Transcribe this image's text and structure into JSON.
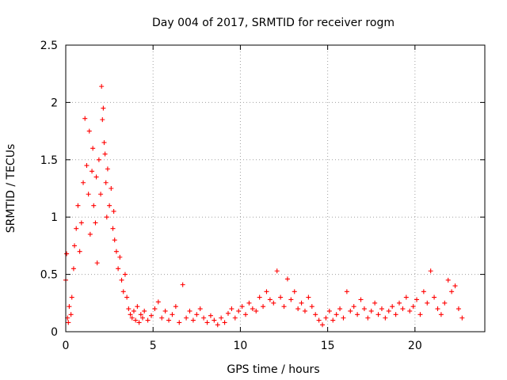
{
  "chart_data": {
    "type": "scatter",
    "title": "Day 004 of 2017, SRMTID for receiver rogm",
    "xlabel": "GPS time / hours",
    "ylabel": "SRMTID / TECUs",
    "xlim": [
      0,
      24
    ],
    "ylim": [
      0,
      2.5
    ],
    "xticks": [
      0,
      5,
      10,
      15,
      20
    ],
    "xtick_labels": [
      "0",
      "5",
      "10",
      "15",
      "20"
    ],
    "yticks": [
      0,
      0.5,
      1,
      1.5,
      2,
      2.5
    ],
    "ytick_labels": [
      "0",
      "0.5",
      "1",
      "1.5",
      "2",
      "2.5"
    ],
    "grid": true,
    "marker": "+",
    "color": "#ff0000",
    "series": [
      {
        "name": "SRMTID",
        "x": [
          0.0,
          0.05,
          0.1,
          0.15,
          0.2,
          0.3,
          0.35,
          0.45,
          0.5,
          0.6,
          0.7,
          0.8,
          0.9,
          1.0,
          1.1,
          1.2,
          1.3,
          1.35,
          1.4,
          1.5,
          1.55,
          1.6,
          1.7,
          1.75,
          1.8,
          1.9,
          2.0,
          2.05,
          2.1,
          2.15,
          2.2,
          2.25,
          2.3,
          2.35,
          2.4,
          2.5,
          2.6,
          2.7,
          2.75,
          2.8,
          2.9,
          3.0,
          3.1,
          3.2,
          3.3,
          3.4,
          3.5,
          3.6,
          3.7,
          3.8,
          3.9,
          4.0,
          4.1,
          4.2,
          4.3,
          4.4,
          4.5,
          4.7,
          4.9,
          5.1,
          5.3,
          5.5,
          5.7,
          5.9,
          6.1,
          6.3,
          6.5,
          6.7,
          6.9,
          7.1,
          7.3,
          7.5,
          7.7,
          7.9,
          8.1,
          8.3,
          8.5,
          8.7,
          8.9,
          9.1,
          9.3,
          9.5,
          9.7,
          9.9,
          10.1,
          10.3,
          10.5,
          10.7,
          10.9,
          11.1,
          11.3,
          11.5,
          11.7,
          11.9,
          12.1,
          12.3,
          12.5,
          12.7,
          12.9,
          13.1,
          13.3,
          13.5,
          13.7,
          13.9,
          14.1,
          14.3,
          14.5,
          14.7,
          14.9,
          15.1,
          15.3,
          15.5,
          15.7,
          15.9,
          16.1,
          16.3,
          16.5,
          16.7,
          16.9,
          17.1,
          17.3,
          17.5,
          17.7,
          17.9,
          18.1,
          18.3,
          18.5,
          18.7,
          18.9,
          19.1,
          19.3,
          19.5,
          19.7,
          19.9,
          20.1,
          20.3,
          20.5,
          20.7,
          20.9,
          21.1,
          21.3,
          21.5,
          21.7,
          21.9,
          22.1,
          22.3,
          22.5,
          22.7
        ],
        "y": [
          0.45,
          0.68,
          0.12,
          0.08,
          0.22,
          0.15,
          0.3,
          0.55,
          0.75,
          0.9,
          1.1,
          0.7,
          0.95,
          1.3,
          1.86,
          1.45,
          1.2,
          1.75,
          0.85,
          1.4,
          1.6,
          1.1,
          0.95,
          1.35,
          0.6,
          1.5,
          1.2,
          2.14,
          1.85,
          1.95,
          1.65,
          1.55,
          1.3,
          1.0,
          1.42,
          1.1,
          1.25,
          0.9,
          1.05,
          0.8,
          0.7,
          0.55,
          0.65,
          0.45,
          0.35,
          0.5,
          0.3,
          0.2,
          0.15,
          0.12,
          0.18,
          0.1,
          0.22,
          0.08,
          0.15,
          0.12,
          0.18,
          0.1,
          0.14,
          0.2,
          0.26,
          0.12,
          0.18,
          0.1,
          0.15,
          0.22,
          0.08,
          0.41,
          0.12,
          0.18,
          0.1,
          0.15,
          0.2,
          0.12,
          0.08,
          0.14,
          0.1,
          0.06,
          0.12,
          0.08,
          0.16,
          0.2,
          0.12,
          0.18,
          0.22,
          0.15,
          0.25,
          0.2,
          0.18,
          0.3,
          0.22,
          0.35,
          0.28,
          0.25,
          0.53,
          0.3,
          0.22,
          0.46,
          0.28,
          0.35,
          0.2,
          0.25,
          0.18,
          0.3,
          0.22,
          0.15,
          0.1,
          0.06,
          0.12,
          0.18,
          0.1,
          0.15,
          0.2,
          0.12,
          0.35,
          0.18,
          0.22,
          0.15,
          0.28,
          0.2,
          0.12,
          0.18,
          0.25,
          0.15,
          0.2,
          0.12,
          0.18,
          0.22,
          0.15,
          0.25,
          0.2,
          0.3,
          0.18,
          0.22,
          0.28,
          0.15,
          0.35,
          0.25,
          0.53,
          0.3,
          0.2,
          0.15,
          0.25,
          0.45,
          0.35,
          0.4,
          0.2,
          0.12
        ]
      }
    ]
  }
}
